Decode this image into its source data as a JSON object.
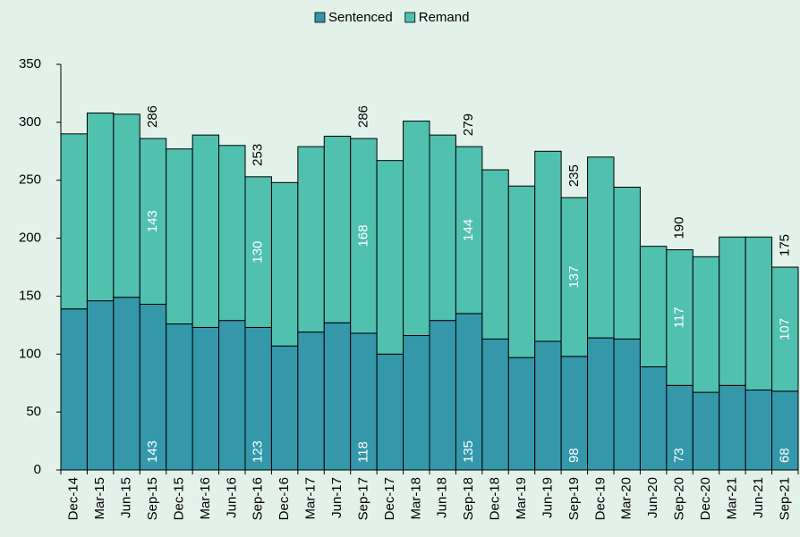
{
  "chart_data": {
    "type": "stacked_bar",
    "categories": [
      "Dec-14",
      "Mar-15",
      "Jun-15",
      "Sep-15",
      "Dec-15",
      "Mar-16",
      "Jun-16",
      "Sep-16",
      "Dec-16",
      "Mar-17",
      "Jun-17",
      "Sep-17",
      "Dec-17",
      "Mar-18",
      "Jun-18",
      "Sep-18",
      "Dec-18",
      "Mar-19",
      "Jun-19",
      "Sep-19",
      "Dec-19",
      "Mar-20",
      "Jun-20",
      "Sep-20",
      "Dec-20",
      "Mar-21",
      "Jun-21",
      "Sep-21"
    ],
    "series": [
      {
        "name": "Sentenced",
        "color": "#3497aa",
        "values": [
          139,
          146,
          149,
          143,
          126,
          123,
          129,
          123,
          107,
          119,
          127,
          118,
          100,
          116,
          129,
          135,
          113,
          97,
          111,
          98,
          114,
          113,
          89,
          73,
          67,
          73,
          69,
          68
        ],
        "labels": [
          null,
          null,
          null,
          143,
          null,
          null,
          null,
          123,
          null,
          null,
          null,
          118,
          null,
          null,
          null,
          135,
          null,
          null,
          null,
          98,
          null,
          null,
          null,
          73,
          null,
          null,
          null,
          68
        ]
      },
      {
        "name": "Remand",
        "color": "#50c0af",
        "values": [
          151,
          162,
          158,
          143,
          151,
          166,
          151,
          130,
          141,
          160,
          161,
          168,
          167,
          185,
          160,
          144,
          146,
          148,
          164,
          137,
          156,
          131,
          104,
          117,
          117,
          128,
          132,
          107
        ],
        "labels": [
          null,
          null,
          null,
          143,
          null,
          null,
          null,
          130,
          null,
          null,
          null,
          168,
          null,
          null,
          null,
          144,
          null,
          null,
          null,
          137,
          null,
          null,
          null,
          117,
          null,
          null,
          null,
          107
        ]
      }
    ],
    "total_labels": [
      null,
      null,
      null,
      286,
      null,
      null,
      null,
      253,
      null,
      null,
      null,
      286,
      null,
      null,
      null,
      279,
      null,
      null,
      null,
      235,
      null,
      null,
      null,
      190,
      null,
      null,
      null,
      175
    ],
    "ylim": [
      0,
      350
    ],
    "yticks": [
      0,
      50,
      100,
      150,
      200,
      250,
      300,
      350
    ],
    "grid": false,
    "legend": "top"
  }
}
